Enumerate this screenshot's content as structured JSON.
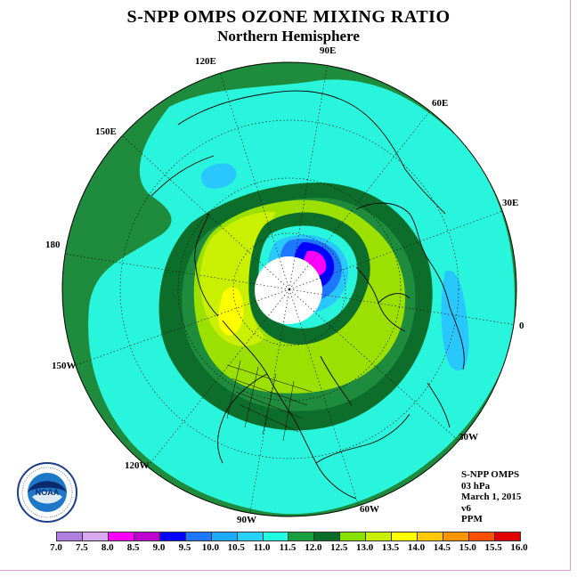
{
  "title": "S-NPP OMPS OZONE MIXING RATIO",
  "subtitle": "Northern Hemisphere",
  "longitude_labels": {
    "e90": "90E",
    "e120": "120E",
    "e60": "60E",
    "e150": "150E",
    "e30": "30E",
    "d180": "180",
    "zero": "0",
    "w150": "150W",
    "w30": "30W",
    "w120": "120W",
    "w90": "90W",
    "w60": "60W"
  },
  "info": {
    "instrument": "S-NPP OMPS",
    "level": "03 hPa",
    "date": "March 1, 2015",
    "version": "v6",
    "units": "PPM"
  },
  "logo": {
    "text": "NOAA",
    "icon": "noaa-logo-icon"
  },
  "colorbar": {
    "ticks": [
      "7.0",
      "7.5",
      "8.0",
      "8.5",
      "9.0",
      "9.5",
      "10.0",
      "10.5",
      "11.0",
      "11.5",
      "12.0",
      "12.5",
      "13.0",
      "13.5",
      "14.0",
      "14.5",
      "15.0",
      "15.5",
      "16.0"
    ],
    "colors": [
      "#b07ee0",
      "#d8a8f0",
      "#ff00ff",
      "#c000d0",
      "#0000ff",
      "#1e78ff",
      "#1eaaff",
      "#28d2ff",
      "#20ffe0",
      "#18a040",
      "#0a6e28",
      "#88e000",
      "#c8f000",
      "#ffff00",
      "#ffc800",
      "#ff9600",
      "#ff5000",
      "#e00000",
      "#8b5a3c"
    ]
  },
  "map_colors": {
    "outer_green": "#1e8c3c",
    "cyan": "#28f5dc",
    "dark_green": "#0d6e2c",
    "mid_green": "#1e8c3c",
    "lime": "#9be000",
    "yellow_green": "#c8f000",
    "yellow": "#ffff00",
    "blue_light": "#28c8ff",
    "blue": "#1e78ff",
    "deep_blue": "#0000ff",
    "magenta": "#ff00ff",
    "pole_hole": "#ffffff"
  }
}
